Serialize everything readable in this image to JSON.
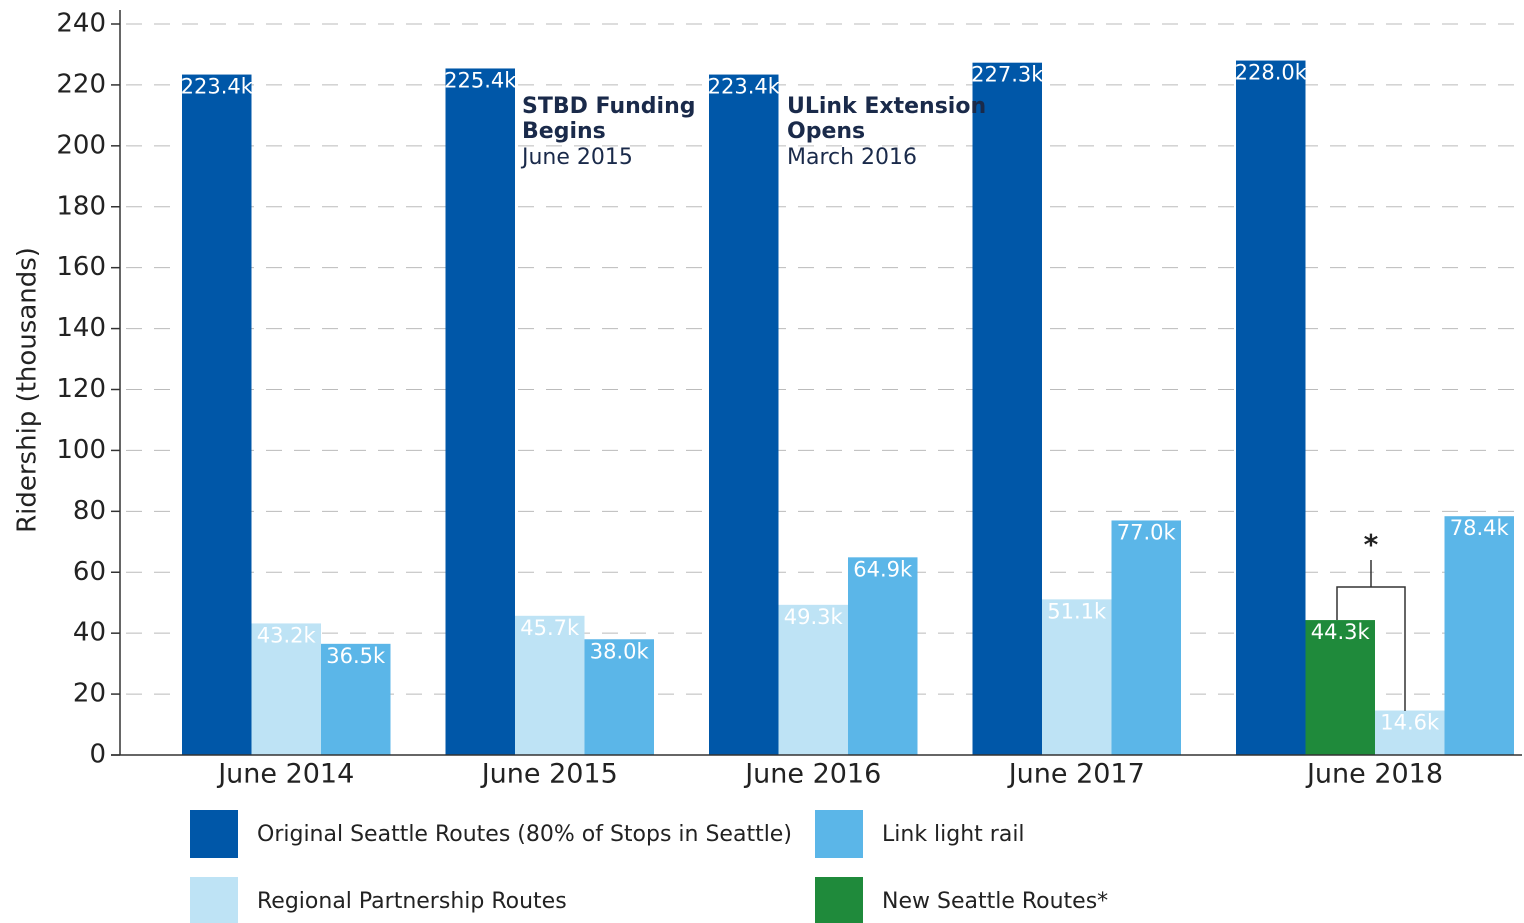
{
  "chart_data": {
    "type": "bar",
    "y_label": "Ridership (thousands)",
    "categories": [
      "June 2014",
      "June 2015",
      "June 2016",
      "June 2017",
      "June 2018"
    ],
    "series": [
      {
        "name": "Original Seattle Routes (80% of Stops in Seattle)",
        "color": "#0057a8",
        "values": [
          223.4,
          225.4,
          223.4,
          227.3,
          228.0
        ],
        "value_labels": [
          "223.4k",
          "225.4k",
          "223.4k",
          "227.3k",
          "228.0k"
        ]
      },
      {
        "name": "New Seattle Routes*",
        "color": "#1f8a3b",
        "values": [
          null,
          null,
          null,
          null,
          44.3
        ],
        "value_labels": [
          null,
          null,
          null,
          null,
          "44.3k"
        ]
      },
      {
        "name": "Regional Partnership Routes",
        "color": "#bee3f5",
        "values": [
          43.2,
          45.7,
          49.3,
          51.1,
          14.6
        ],
        "value_labels": [
          "43.2k",
          "45.7k",
          "49.3k",
          "51.1k",
          "14.6k"
        ]
      },
      {
        "name": "Link light rail",
        "color": "#5bb6e8",
        "values": [
          36.5,
          38.0,
          64.9,
          77.0,
          78.4
        ],
        "value_labels": [
          "36.5k",
          "38.0k",
          "64.9k",
          "77.0k",
          "78.4k"
        ]
      }
    ],
    "annotations": [
      {
        "title": [
          "STBD Funding",
          "Begins"
        ],
        "subtitle": "June 2015"
      },
      {
        "title": [
          "ULink Extension",
          "Opens"
        ],
        "subtitle": "March 2016"
      }
    ],
    "bracket_label": "*",
    "ylim": [
      0,
      240
    ],
    "yticks": [
      0,
      20,
      40,
      60,
      80,
      100,
      120,
      140,
      160,
      180,
      200,
      220,
      240
    ],
    "grid": true
  }
}
